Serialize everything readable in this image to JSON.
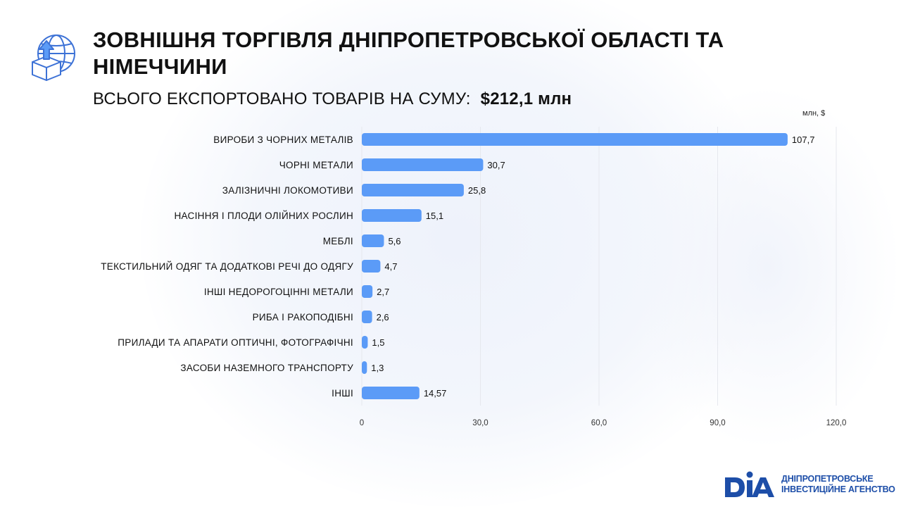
{
  "header": {
    "title": "ЗОВНІШНЯ ТОРГІВЛЯ ДНІПРОПЕТРОВСЬКОЇ ОБЛАСТІ ТА НІМЕЧЧИНИ",
    "subtitle_label": "ВСЬОГО ЕКСПОРТОВАНО ТОВАРІВ НА СУМУ:",
    "subtitle_amount": "$212,1 млн",
    "icon": "globe-export-box-icon"
  },
  "chart_data": {
    "type": "bar",
    "orientation": "horizontal",
    "unit_label": "млн, $",
    "categories": [
      "ВИРОБИ З ЧОРНИХ МЕТАЛІВ",
      "ЧОРНІ МЕТАЛИ",
      "ЗАЛІЗНИЧНІ ЛОКОМОТИВИ",
      "НАСІННЯ І ПЛОДИ ОЛІЙНИХ РОСЛИН",
      "МЕБЛІ",
      "ТЕКСТИЛЬНИЙ ОДЯГ ТА ДОДАТКОВІ РЕЧІ ДО ОДЯГУ",
      "ІНШІ НЕДОРОГОЦІННІ МЕТАЛИ",
      "РИБА І РАКОПОДІБНІ",
      "ПРИЛАДИ ТА АПАРАТИ ОПТИЧНІ, ФОТОГРАФІЧНІ",
      "ЗАСОБИ НАЗЕМНОГО ТРАНСПОРТУ",
      "ІНШІ"
    ],
    "values": [
      107.7,
      30.7,
      25.8,
      15.1,
      5.6,
      4.7,
      2.7,
      2.6,
      1.5,
      1.3,
      14.57
    ],
    "value_labels": [
      "107,7",
      "30,7",
      "25,8",
      "15,1",
      "5,6",
      "4,7",
      "2,7",
      "2,6",
      "1,5",
      "1,3",
      "14,57"
    ],
    "xlim": [
      0,
      120
    ],
    "xticks": [
      0,
      30,
      60,
      90,
      120
    ],
    "xtick_labels": [
      "0",
      "30,0",
      "60,0",
      "90,0",
      "120,0"
    ],
    "grid": true,
    "bar_color": "#5b9bf7",
    "grid_color": "#e6e8ee"
  },
  "footer": {
    "logo_letters": "DIA",
    "logo_line1": "ДНІПРОПЕТРОВСЬКЕ",
    "logo_line2": "ІНВЕСТИЦІЙНЕ АГЕНСТВО",
    "logo_color": "#1d4ea8"
  }
}
